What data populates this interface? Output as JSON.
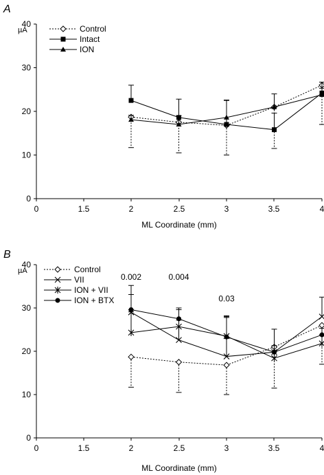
{
  "chart_data": [
    {
      "panel": "A",
      "type": "line",
      "ylabel": "µA",
      "xlabel": "ML Coordinate (mm)",
      "ylim": [
        0,
        40
      ],
      "yticks": [
        0,
        10,
        20,
        30,
        40
      ],
      "xticks": [
        "0",
        "1.5",
        "2",
        "2.5",
        "3",
        "3.5",
        "4"
      ],
      "x": [
        2,
        2.5,
        3,
        3.5,
        4
      ],
      "legend_position": "top-left",
      "series": [
        {
          "name": "Control",
          "style": "dotted",
          "marker": "open-diamond",
          "values": [
            18.7,
            17.5,
            16.8,
            21.0,
            26.0
          ],
          "err": [
            7.0,
            7.0,
            6.8,
            9.5,
            9.0
          ],
          "err_dir": "down"
        },
        {
          "name": "Intact",
          "style": "solid",
          "marker": "filled-square",
          "values": [
            22.5,
            18.6,
            17.0,
            15.8,
            24.2
          ],
          "err": [
            3.5,
            4.2,
            5.5,
            3.8,
            2.5
          ],
          "err_dir": "up"
        },
        {
          "name": "ION",
          "style": "solid",
          "marker": "filled-triangle",
          "values": [
            18.1,
            17.0,
            18.6,
            21.0,
            23.8
          ],
          "err": [
            1.0,
            2.0,
            4.0,
            3.0,
            1.5
          ],
          "err_dir": "up"
        }
      ],
      "annotations": []
    },
    {
      "panel": "B",
      "type": "line",
      "ylabel": "µA",
      "xlabel": "ML Coordinate (mm)",
      "ylim": [
        0,
        40
      ],
      "yticks": [
        0,
        10,
        20,
        30,
        40
      ],
      "xticks": [
        "0",
        "1.5",
        "2",
        "2.5",
        "3",
        "3.5",
        "4"
      ],
      "x": [
        2,
        2.5,
        3,
        3.5,
        4
      ],
      "legend_position": "top-left",
      "series": [
        {
          "name": "Control",
          "style": "dotted",
          "marker": "open-diamond",
          "values": [
            18.7,
            17.5,
            16.8,
            21.0,
            26.0
          ],
          "err": [
            7.0,
            7.0,
            6.8,
            9.5,
            9.0
          ],
          "err_dir": "down"
        },
        {
          "name": "VII",
          "style": "solid",
          "marker": "x",
          "values": [
            29.0,
            22.6,
            18.8,
            19.8,
            28.0
          ],
          "err": [
            6.2,
            7.0,
            9.4,
            5.3,
            4.5
          ],
          "err_dir": "up"
        },
        {
          "name": "ION + VII",
          "style": "solid",
          "marker": "star",
          "values": [
            24.3,
            25.7,
            23.5,
            18.4,
            21.8
          ],
          "err": [
            4.8,
            1.5,
            4.5,
            1.5,
            2.0
          ],
          "err_dir": "up"
        },
        {
          "name": "ION + BTX",
          "style": "solid",
          "marker": "filled-circle",
          "values": [
            29.6,
            27.5,
            23.3,
            19.8,
            23.8
          ],
          "err": [
            3.5,
            2.5,
            4.5,
            1.5,
            1.5
          ],
          "err_dir": "up"
        }
      ],
      "annotations": [
        {
          "text": "0.002",
          "x": 2,
          "y": 36.5
        },
        {
          "text": "0.004",
          "x": 2.5,
          "y": 36.5
        },
        {
          "text": "0.03",
          "x": 3,
          "y": 31.5
        }
      ]
    }
  ]
}
